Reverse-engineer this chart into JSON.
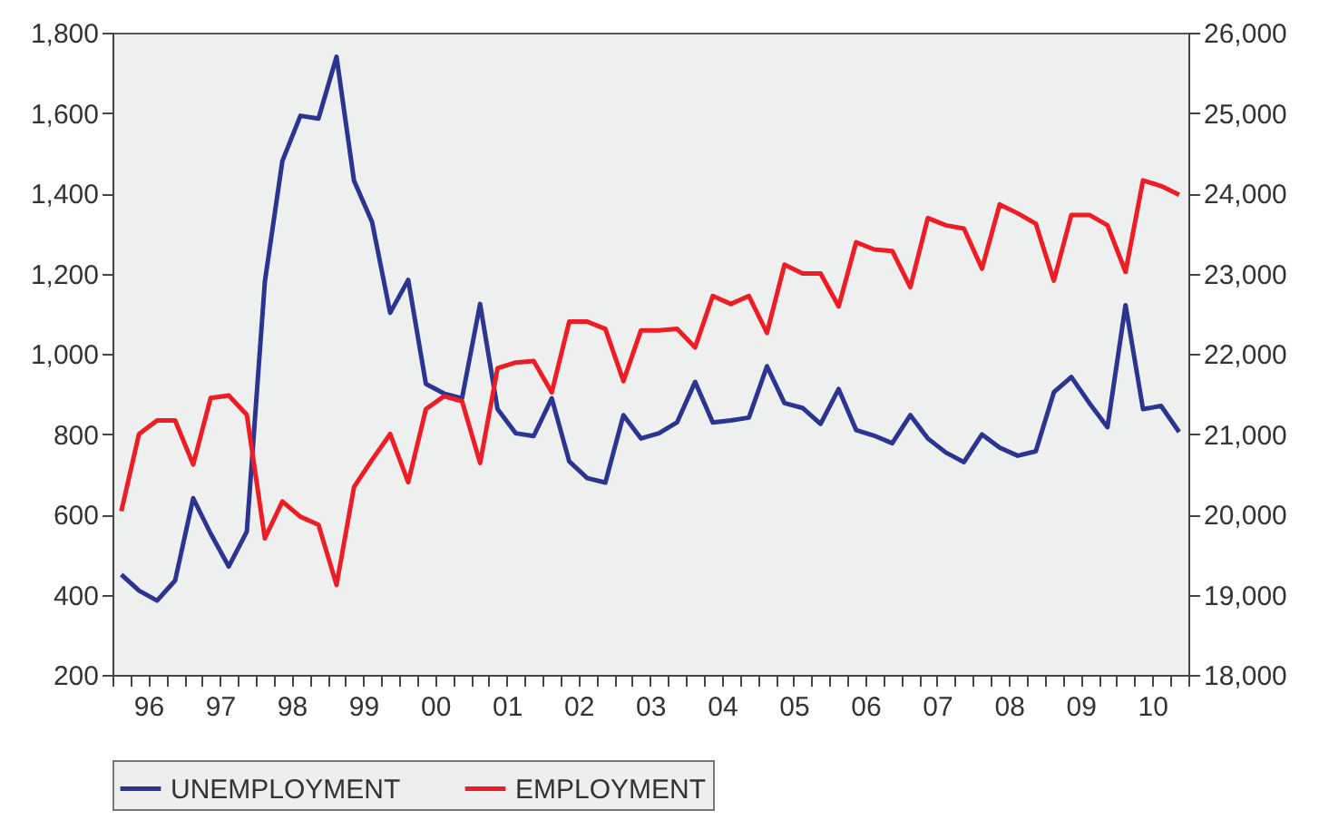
{
  "chart_data": {
    "type": "line",
    "x": [
      "1996-02-15",
      "1996-05-15",
      "1996-08-15",
      "1996-11-15",
      "1997-02-15",
      "1997-05-15",
      "1997-08-15",
      "1997-11-15",
      "1998-02-15",
      "1998-05-15",
      "1998-08-15",
      "1998-11-15",
      "1999-02-15",
      "1999-05-15",
      "1999-08-15",
      "1999-11-15",
      "2000-02-15",
      "2000-05-15",
      "2000-08-15",
      "2000-11-15",
      "2001-02-15",
      "2001-05-15",
      "2001-08-15",
      "2001-11-15",
      "2002-02-15",
      "2002-05-15",
      "2002-08-15",
      "2002-11-15",
      "2003-02-15",
      "2003-05-15",
      "2003-08-15",
      "2003-11-15",
      "2004-02-15",
      "2004-05-15",
      "2004-08-15",
      "2004-11-15",
      "2005-02-15",
      "2005-05-15",
      "2005-08-15",
      "2005-11-15",
      "2006-02-15",
      "2006-05-15",
      "2006-08-15",
      "2006-11-15",
      "2007-02-15",
      "2007-05-15",
      "2007-08-15",
      "2007-11-15",
      "2008-02-15",
      "2008-05-15",
      "2008-08-15",
      "2008-11-15",
      "2009-02-15",
      "2009-05-15",
      "2009-08-15",
      "2009-11-15",
      "2010-02-15",
      "2010-05-15",
      "2010-08-15",
      "2010-11-15"
    ],
    "series": [
      {
        "name": "UNEMPLOYMENT",
        "color": "#2b3590",
        "values": [
          450,
          410,
          385,
          435,
          640,
          552,
          470,
          557,
          1180,
          1480,
          1593,
          1586,
          1740,
          1431,
          1328,
          1102,
          1184,
          925,
          901,
          889,
          1124,
          862,
          802,
          795,
          889,
          732,
          690,
          679,
          847,
          789,
          802,
          829,
          930,
          829,
          834,
          841,
          969,
          877,
          865,
          825,
          912,
          810,
          796,
          777,
          847,
          789,
          754,
          730,
          799,
          766,
          746,
          757,
          904,
          942,
          877,
          817,
          1121,
          862,
          870,
          805
        ]
      },
      {
        "name": "EMPLOYMENT",
        "color": "#ee1c25",
        "axis": "y2",
        "values": [
          20040,
          21000,
          21170,
          21170,
          20620,
          21450,
          21480,
          21240,
          19700,
          20160,
          19970,
          19870,
          19120,
          20340,
          20680,
          21000,
          20400,
          21310,
          21470,
          21410,
          20640,
          21820,
          21890,
          21910,
          21520,
          22400,
          22400,
          22310,
          21660,
          22290,
          22290,
          22310,
          22080,
          22720,
          22620,
          22720,
          22260,
          23110,
          23000,
          23000,
          22590,
          23390,
          23300,
          23280,
          22830,
          23690,
          23600,
          23560,
          23060,
          23860,
          23750,
          23620,
          22910,
          23730,
          23730,
          23600,
          23020,
          24160,
          24090,
          23980
        ]
      }
    ],
    "xlim": [
      "1996-01-01",
      "2011-01-01"
    ],
    "xticks": [
      {
        "value": "1996-01-01",
        "label": null
      },
      {
        "value": "1996-04-01",
        "label": null
      },
      {
        "value": "1996-07-01",
        "label": "96"
      },
      {
        "value": "1996-10-01",
        "label": null
      },
      {
        "value": "1997-01-01",
        "label": null
      },
      {
        "value": "1997-04-01",
        "label": null
      },
      {
        "value": "1997-07-01",
        "label": "97"
      },
      {
        "value": "1997-10-01",
        "label": null
      },
      {
        "value": "1998-01-01",
        "label": null
      },
      {
        "value": "1998-04-01",
        "label": null
      },
      {
        "value": "1998-07-01",
        "label": "98"
      },
      {
        "value": "1998-10-01",
        "label": null
      },
      {
        "value": "1999-01-01",
        "label": null
      },
      {
        "value": "1999-04-01",
        "label": null
      },
      {
        "value": "1999-07-01",
        "label": "99"
      },
      {
        "value": "1999-10-01",
        "label": null
      },
      {
        "value": "2000-01-01",
        "label": null
      },
      {
        "value": "2000-04-01",
        "label": null
      },
      {
        "value": "2000-07-01",
        "label": "00"
      },
      {
        "value": "2000-10-01",
        "label": null
      },
      {
        "value": "2001-01-01",
        "label": null
      },
      {
        "value": "2001-04-01",
        "label": null
      },
      {
        "value": "2001-07-01",
        "label": "01"
      },
      {
        "value": "2001-10-01",
        "label": null
      },
      {
        "value": "2002-01-01",
        "label": null
      },
      {
        "value": "2002-04-01",
        "label": null
      },
      {
        "value": "2002-07-01",
        "label": "02"
      },
      {
        "value": "2002-10-01",
        "label": null
      },
      {
        "value": "2003-01-01",
        "label": null
      },
      {
        "value": "2003-04-01",
        "label": null
      },
      {
        "value": "2003-07-01",
        "label": "03"
      },
      {
        "value": "2003-10-01",
        "label": null
      },
      {
        "value": "2004-01-01",
        "label": null
      },
      {
        "value": "2004-04-01",
        "label": null
      },
      {
        "value": "2004-07-01",
        "label": "04"
      },
      {
        "value": "2004-10-01",
        "label": null
      },
      {
        "value": "2005-01-01",
        "label": null
      },
      {
        "value": "2005-04-01",
        "label": null
      },
      {
        "value": "2005-07-01",
        "label": "05"
      },
      {
        "value": "2005-10-01",
        "label": null
      },
      {
        "value": "2006-01-01",
        "label": null
      },
      {
        "value": "2006-04-01",
        "label": null
      },
      {
        "value": "2006-07-01",
        "label": "06"
      },
      {
        "value": "2006-10-01",
        "label": null
      },
      {
        "value": "2007-01-01",
        "label": null
      },
      {
        "value": "2007-04-01",
        "label": null
      },
      {
        "value": "2007-07-01",
        "label": "07"
      },
      {
        "value": "2007-10-01",
        "label": null
      },
      {
        "value": "2008-01-01",
        "label": null
      },
      {
        "value": "2008-04-01",
        "label": null
      },
      {
        "value": "2008-07-01",
        "label": "08"
      },
      {
        "value": "2008-10-01",
        "label": null
      },
      {
        "value": "2009-01-01",
        "label": null
      },
      {
        "value": "2009-04-01",
        "label": null
      },
      {
        "value": "2009-07-01",
        "label": "09"
      },
      {
        "value": "2009-10-01",
        "label": null
      },
      {
        "value": "2010-01-01",
        "label": null
      },
      {
        "value": "2010-04-01",
        "label": null
      },
      {
        "value": "2010-07-01",
        "label": "10"
      },
      {
        "value": "2010-10-01",
        "label": null
      },
      {
        "value": "2011-01-01",
        "label": null
      }
    ],
    "ylim": [
      200,
      1800
    ],
    "yticks": [
      {
        "value": 200,
        "label": "200"
      },
      {
        "value": 400,
        "label": "400"
      },
      {
        "value": 600,
        "label": "600"
      },
      {
        "value": 800,
        "label": "800"
      },
      {
        "value": 1000,
        "label": "1,000"
      },
      {
        "value": 1200,
        "label": "1,200"
      },
      {
        "value": 1400,
        "label": "1,400"
      },
      {
        "value": 1600,
        "label": "1,600"
      },
      {
        "value": 1800,
        "label": "1,800"
      }
    ],
    "y2lim": [
      18000,
      26000
    ],
    "y2ticks": [
      {
        "value": 18000,
        "label": "18,000"
      },
      {
        "value": 19000,
        "label": "19,000"
      },
      {
        "value": 20000,
        "label": "20,000"
      },
      {
        "value": 21000,
        "label": "21,000"
      },
      {
        "value": 22000,
        "label": "22,000"
      },
      {
        "value": 23000,
        "label": "23,000"
      },
      {
        "value": 24000,
        "label": "24,000"
      },
      {
        "value": 25000,
        "label": "25,000"
      },
      {
        "value": 26000,
        "label": "26,000"
      }
    ],
    "legend": "bottom",
    "line_style": "solid"
  }
}
